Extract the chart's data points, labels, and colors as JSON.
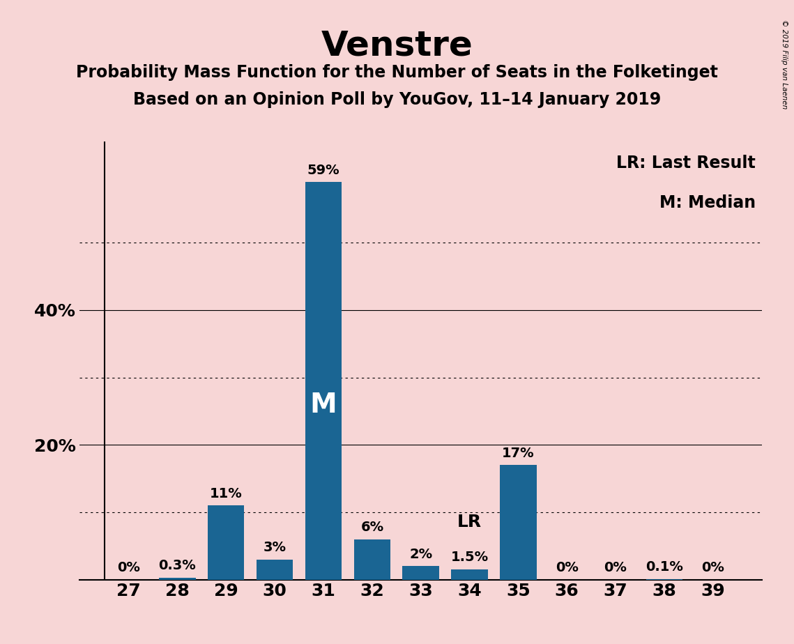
{
  "title": "Venstre",
  "subtitle1": "Probability Mass Function for the Number of Seats in the Folketinget",
  "subtitle2": "Based on an Opinion Poll by YouGov, 11–14 January 2019",
  "categories": [
    27,
    28,
    29,
    30,
    31,
    32,
    33,
    34,
    35,
    36,
    37,
    38,
    39
  ],
  "values": [
    0.0,
    0.3,
    11.0,
    3.0,
    59.0,
    6.0,
    2.0,
    1.5,
    17.0,
    0.0,
    0.0,
    0.1,
    0.0
  ],
  "labels": [
    "0%",
    "0.3%",
    "11%",
    "3%",
    "59%",
    "6%",
    "2%",
    "1.5%",
    "17%",
    "0%",
    "0%",
    "0.1%",
    "0%"
  ],
  "bar_color": "#1a6593",
  "background_color": "#f7d6d6",
  "median_bar": 31,
  "lr_bar": 34,
  "median_label": "M",
  "lr_label": "LR",
  "legend_line1": "LR: Last Result",
  "legend_line2": "M: Median",
  "ylim": [
    0,
    65
  ],
  "major_yticks": [
    20,
    40
  ],
  "minor_yticks": [
    10,
    30,
    50
  ],
  "copyright": "© 2019 Filip van Laenen",
  "title_fontsize": 36,
  "subtitle_fontsize": 17,
  "label_fontsize": 14,
  "axis_fontsize": 18,
  "legend_fontsize": 17,
  "median_label_fontsize": 28,
  "lr_label_fontsize": 18
}
